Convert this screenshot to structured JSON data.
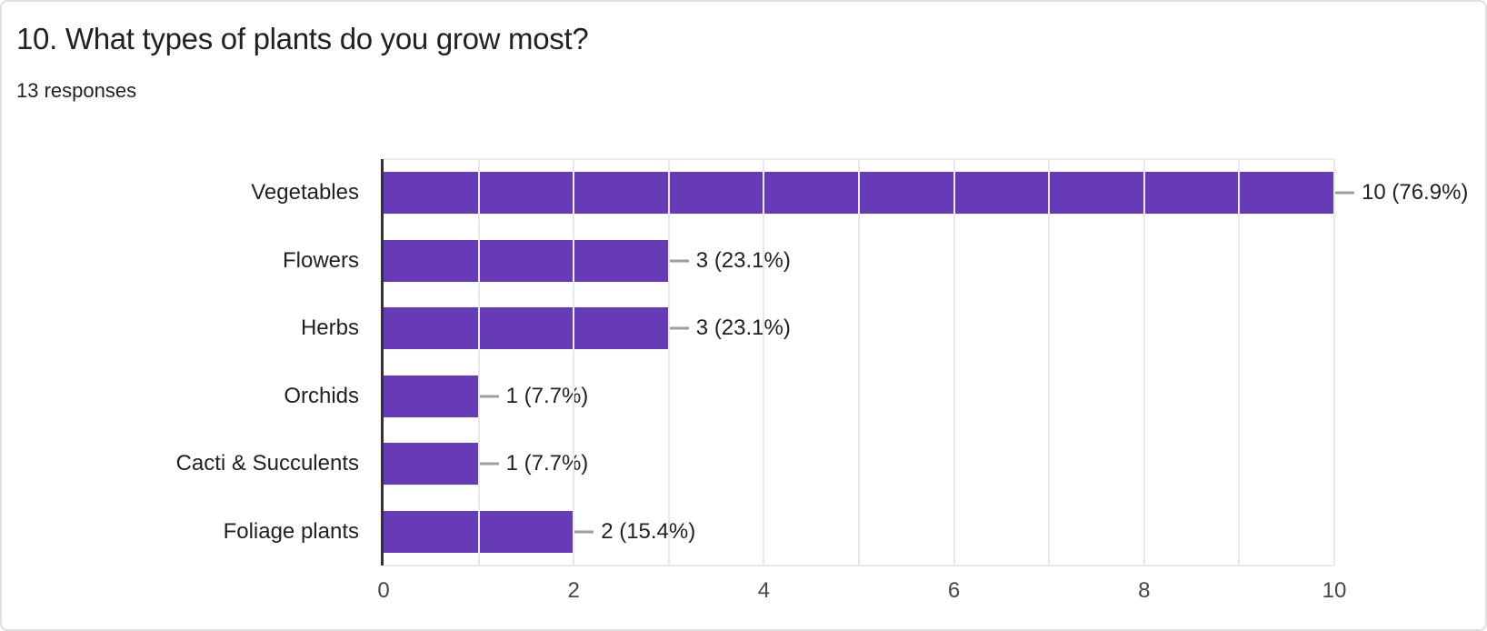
{
  "header": {
    "title": "10. What types of plants do you grow most?",
    "responses_label": "13 responses"
  },
  "chart_data": {
    "type": "bar",
    "orientation": "horizontal",
    "title": "10. What types of plants do you grow most?",
    "subtitle": "13 responses",
    "categories": [
      "Vegetables",
      "Flowers",
      "Herbs",
      "Orchids",
      "Cacti & Succulents",
      "Foliage plants"
    ],
    "values": [
      10,
      3,
      3,
      1,
      1,
      2
    ],
    "value_labels": [
      "10 (76.9%)",
      "3 (23.1%)",
      "3 (23.1%)",
      "1 (7.7%)",
      "1 (7.7%)",
      "2 (15.4%)"
    ],
    "total_responses": 13,
    "xlabel": "",
    "ylabel": "",
    "xlim": [
      0,
      10
    ],
    "x_ticks": [
      0,
      2,
      4,
      6,
      8,
      10
    ],
    "gridline_step": 1,
    "grid": true,
    "legend_position": "none",
    "colors": {
      "bar": "#673ab7",
      "axis_line": "#333333",
      "gridline": "#e8e8e8",
      "edge_line": "#ebebeb",
      "leader_line": "#9e9e9e",
      "value_label": "#212121",
      "category_label": "#212121",
      "tick_label": "#444746",
      "title_text": "#202124",
      "card_border": "#e0e0e0",
      "background": "#ffffff"
    }
  }
}
